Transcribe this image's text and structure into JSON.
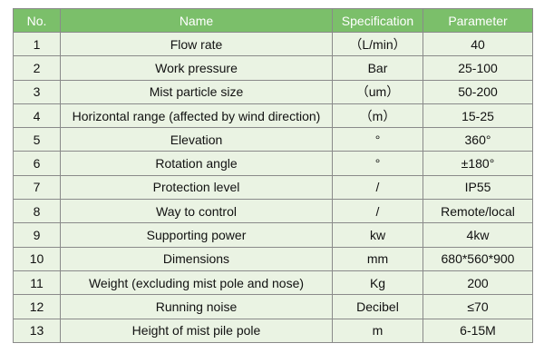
{
  "table": {
    "headers": [
      "No.",
      "Name",
      "Specification",
      "Parameter"
    ],
    "rows": [
      {
        "no": "1",
        "name": "Flow rate",
        "spec": "（L/min）",
        "param": "40"
      },
      {
        "no": "2",
        "name": "Work pressure",
        "spec": "Bar",
        "param": "25-100"
      },
      {
        "no": "3",
        "name": "Mist particle size",
        "spec": "（um）",
        "param": "50-200"
      },
      {
        "no": "4",
        "name": "Horizontal range (affected by wind direction)",
        "spec": "（m）",
        "param": "15-25"
      },
      {
        "no": "5",
        "name": "Elevation",
        "spec": "°",
        "param": "360°"
      },
      {
        "no": "6",
        "name": "Rotation angle",
        "spec": "°",
        "param": "±180°"
      },
      {
        "no": "7",
        "name": "Protection level",
        "spec": "/",
        "param": "IP55"
      },
      {
        "no": "8",
        "name": "Way to control",
        "spec": "/",
        "param": "Remote/local"
      },
      {
        "no": "9",
        "name": "Supporting power",
        "spec": "kw",
        "param": "4kw"
      },
      {
        "no": "10",
        "name": "Dimensions",
        "spec": "mm",
        "param": "680*560*900"
      },
      {
        "no": "11",
        "name": "Weight (excluding mist pole and nose)",
        "spec": "Kg",
        "param": "200"
      },
      {
        "no": "12",
        "name": "Running noise",
        "spec": "Decibel",
        "param": "≤70"
      },
      {
        "no": "13",
        "name": "Height of mist pile pole",
        "spec": "m",
        "param": "6-15M"
      }
    ]
  }
}
